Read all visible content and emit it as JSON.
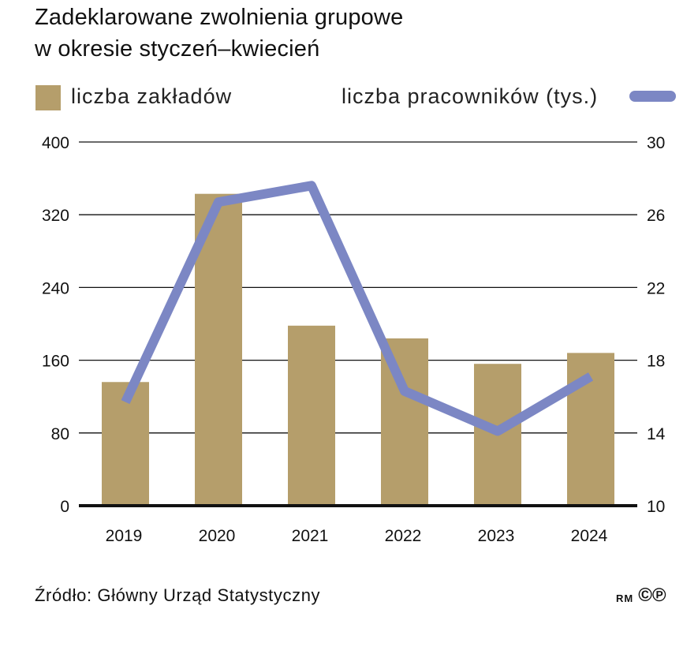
{
  "title": {
    "line1": "Zadeklarowane zwolnienia grupowe",
    "line2": "w okresie styczeń–kwiecień"
  },
  "legend": {
    "bars_label": "liczba zakładów",
    "line_label": "liczba pracowników (tys.)"
  },
  "colors": {
    "bars": "#b59e6b",
    "line": "#7c87c4",
    "grid": "#111111",
    "text": "#111111"
  },
  "chart_data": {
    "type": "bar",
    "categories": [
      "2019",
      "2020",
      "2021",
      "2022",
      "2023",
      "2024"
    ],
    "series": [
      {
        "name": "liczba zakładów",
        "type": "bar",
        "axis": "left",
        "values": [
          136,
          343,
          198,
          184,
          156,
          168
        ]
      },
      {
        "name": "liczba pracowników (tys.)",
        "type": "line",
        "axis": "right",
        "values": [
          15.7,
          26.7,
          27.6,
          16.3,
          14.1,
          17.1
        ]
      }
    ],
    "y_left": {
      "ylim": [
        0,
        400
      ],
      "ticks": [
        "0",
        "80",
        "160",
        "240",
        "320",
        "400"
      ]
    },
    "y_right": {
      "ylim": [
        10,
        30
      ],
      "ticks": [
        "10",
        "14",
        "18",
        "22",
        "26",
        "30"
      ]
    },
    "grid": true,
    "legend_position": "top"
  },
  "footer": {
    "source": "Źródło: Główny Urząd Statystyczny",
    "logo_rm": "RM",
    "logo_symbols": "©℗"
  }
}
